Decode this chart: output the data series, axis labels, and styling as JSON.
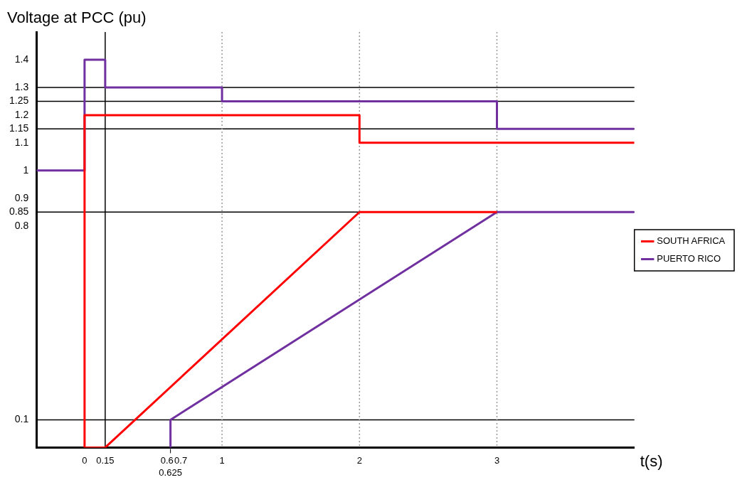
{
  "chart_data": {
    "type": "line",
    "xlabel": "t(s)",
    "ylabel": "Voltage at PCC (pu)",
    "xlim": [
      -0.35,
      4
    ],
    "ylim": [
      0,
      1.5
    ],
    "xticks": [
      0,
      0.15,
      0.6,
      0.7,
      1,
      2,
      3
    ],
    "annotations": [
      {
        "text": "0.625",
        "x": 0.625,
        "y": 0
      }
    ],
    "yticks": [
      0.1,
      0.8,
      0.85,
      0.9,
      1,
      1.1,
      1.15,
      1.2,
      1.25,
      1.3,
      1.4
    ],
    "grid": false,
    "legend": "right",
    "marker": "none",
    "line_style": "solid",
    "series": [
      {
        "name": "SOUTH AFRICA",
        "color": "#ff0000",
        "x": [
          4,
          2,
          2,
          0,
          0,
          0.15,
          2,
          3
        ],
        "values": [
          1.1,
          1.1,
          1.2,
          1.2,
          0,
          0,
          0.85,
          0.85
        ]
      },
      {
        "name": "PUERTO RICO",
        "color": "#7030a0",
        "x": [
          -0.35,
          0,
          0,
          0.15,
          0.15,
          1,
          1,
          3,
          3,
          4
        ],
        "values": [
          1,
          1,
          1.4,
          1.4,
          1.3,
          1.3,
          1.25,
          1.25,
          1.15,
          1.15
        ]
      },
      {
        "color": "#7030a0",
        "x": [
          0.625,
          0.625,
          3,
          4
        ],
        "values": [
          0,
          0.1,
          0.85,
          0.85
        ]
      }
    ],
    "ref_lines": [
      {
        "axis": "y",
        "value": 1.3,
        "color": "#000000",
        "line_style": "solid"
      },
      {
        "axis": "y",
        "value": 1.25,
        "color": "#000000",
        "line_style": "solid"
      },
      {
        "axis": "y",
        "value": 1.15,
        "color": "#000000",
        "line_style": "solid"
      },
      {
        "axis": "y",
        "value": 0.85,
        "color": "#000000",
        "line_style": "solid"
      },
      {
        "axis": "y",
        "value": 0.1,
        "color": "#000000",
        "line_style": "solid"
      },
      {
        "axis": "x",
        "value": 0.15,
        "color": "#000000",
        "line_style": "solid"
      },
      {
        "axis": "x",
        "value": 1,
        "color": "#999999",
        "line_style": "dotted"
      },
      {
        "axis": "x",
        "value": 2,
        "color": "#999999",
        "line_style": "dotted"
      },
      {
        "axis": "x",
        "value": 3,
        "color": "#999999",
        "line_style": "dotted"
      }
    ]
  }
}
